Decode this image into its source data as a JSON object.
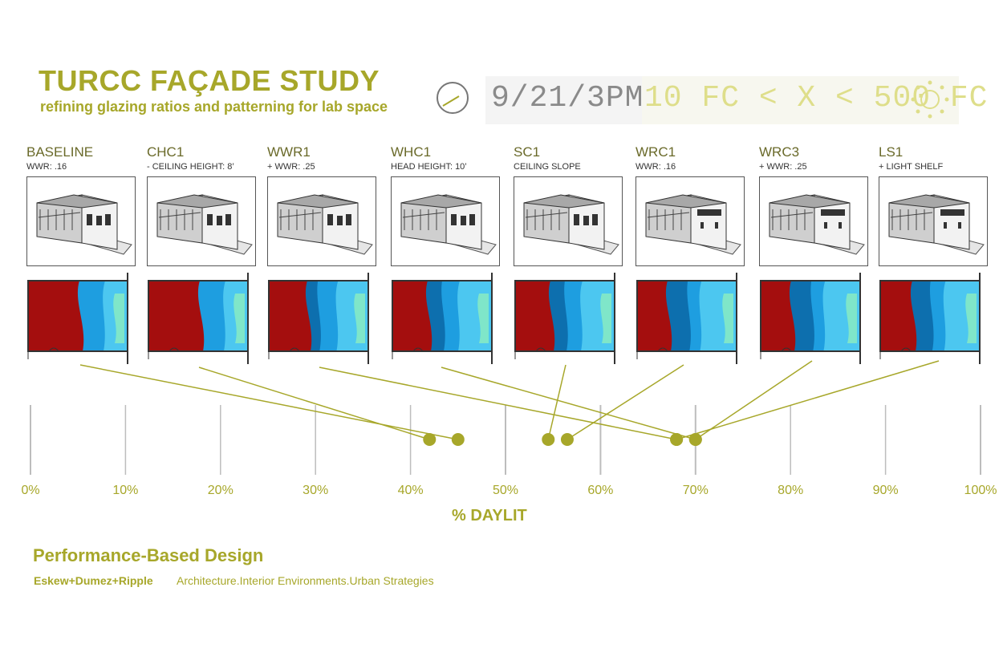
{
  "header": {
    "title": "TURCC FAÇADE STUDY",
    "subtitle": "refining glazing ratios and patterning for lab space",
    "time": "9/21/3PM",
    "range": "10 FC < X < 500 FC"
  },
  "icons": {
    "clock": "clock-icon",
    "sun": "sun-icon"
  },
  "colors": {
    "accent": "#a7a72a",
    "pale_accent": "#dede8a",
    "red_zone": "#a40e0e",
    "blue_zone": "#1e9ee0"
  },
  "scenarios": [
    {
      "name": "BASELINE",
      "note": "WWR: .16"
    },
    {
      "name": "CHC1",
      "note": "- CEILING HEIGHT: 8’"
    },
    {
      "name": "WWR1",
      "note": "+ WWR: .25"
    },
    {
      "name": "WHC1",
      "note": "HEAD HEIGHT: 10’"
    },
    {
      "name": "SC1",
      "note": "CEILING SLOPE"
    },
    {
      "name": "WRC1",
      "note": "WWR: .16"
    },
    {
      "name": "WRC3",
      "note": "+ WWR: .25"
    },
    {
      "name": "LS1",
      "note": "+ LIGHT SHELF"
    }
  ],
  "chart_data": {
    "type": "scatter",
    "xlabel": "% DAYLIT",
    "xlim": [
      0,
      100
    ],
    "ticks": [
      "0%",
      "10%",
      "20%",
      "30%",
      "40%",
      "50%",
      "60%",
      "70%",
      "80%",
      "90%",
      "100%"
    ],
    "points": [
      {
        "scenario": "BASELINE",
        "x": 45
      },
      {
        "scenario": "CHC1",
        "x": 42
      },
      {
        "scenario": "WWR1",
        "x": 68
      },
      {
        "scenario": "WHC1",
        "x": 70
      },
      {
        "scenario": "SC1",
        "x": 54.5
      },
      {
        "scenario": "WRC1",
        "x": 56.5
      },
      {
        "scenario": "WRC3",
        "x": 70
      },
      {
        "scenario": "LS1",
        "x": 68
      }
    ]
  },
  "footer": {
    "title": "Performance-Based Design",
    "firm": "Eskew+Dumez+Ripple",
    "tagline": "Architecture.Interior Environments.Urban Strategies"
  }
}
